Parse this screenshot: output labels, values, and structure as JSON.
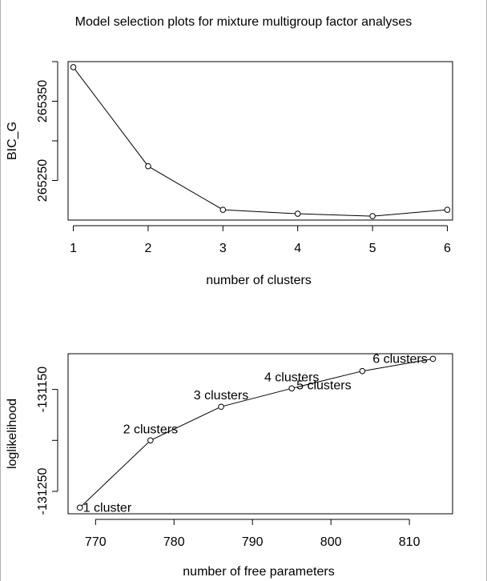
{
  "title": "Model selection plots for mixture multigroup factor analyses",
  "chart_data": [
    {
      "type": "line",
      "title": "",
      "xlabel": "number of clusters",
      "ylabel": "BIC_G",
      "x": [
        1,
        2,
        3,
        4,
        5,
        6
      ],
      "y": [
        265393,
        265268,
        265213,
        265208,
        265205,
        265213
      ],
      "xlim": [
        0.93,
        6.07
      ],
      "ylim": [
        265200,
        265400
      ],
      "xticks": [
        "1",
        "2",
        "3",
        "4",
        "5",
        "6"
      ],
      "yticks": [
        "265250",
        "265350"
      ],
      "grid": false
    },
    {
      "type": "line",
      "title": "",
      "xlabel": "number of free parameters",
      "ylabel": "loglikelihood",
      "x": [
        768,
        777,
        786,
        795,
        804,
        813
      ],
      "y": [
        -131266,
        -131200,
        -131167,
        -131149,
        -131132,
        -131120
      ],
      "point_labels": [
        "1 cluster",
        "2 clusters",
        "3 clusters",
        "4 clusters",
        "5 clusters",
        "6 clusters"
      ],
      "xlim": [
        766.5,
        815.5
      ],
      "ylim": [
        -131272,
        -131115
      ],
      "xticks": [
        "770",
        "780",
        "790",
        "800",
        "810"
      ],
      "yticks": [
        "-131250",
        "-131150"
      ],
      "grid": false
    }
  ]
}
